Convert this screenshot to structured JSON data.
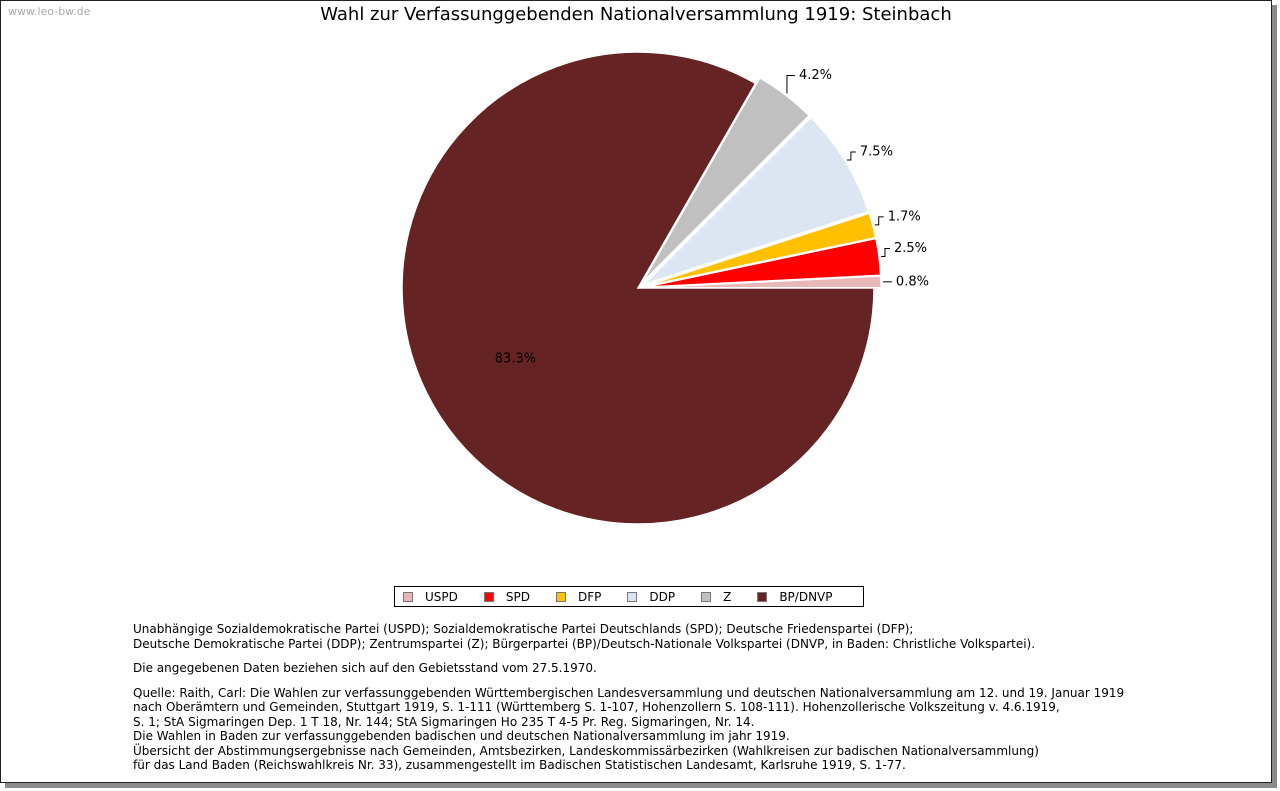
{
  "watermark": "www.leo-bw.de",
  "chart_data": {
    "type": "pie",
    "title": "Wahl zur Verfassunggebenden Nationalversammlung 1919: Steinbach",
    "slices": [
      {
        "name": "USPD",
        "value": 0.8,
        "label": "0.8%",
        "color": "#E8B8B8"
      },
      {
        "name": "SPD",
        "value": 2.5,
        "label": "2.5%",
        "color": "#FF0000"
      },
      {
        "name": "DFP",
        "value": 1.7,
        "label": "1.7%",
        "color": "#FFC000"
      },
      {
        "name": "DDP",
        "value": 7.5,
        "label": "7.5%",
        "color": "#DCE6F2"
      },
      {
        "name": "Z",
        "value": 4.2,
        "label": "4.2%",
        "color": "#C0C0C0"
      },
      {
        "name": "BP/DNVP",
        "value": 83.3,
        "label": "83.3%",
        "color": "#652324"
      }
    ],
    "legend_placement": "bottom"
  },
  "notes": {
    "parties": [
      "Unabhängige Sozialdemokratische Partei (USPD); Sozialdemokratische Partei Deutschlands (SPD); Deutsche Friedenspartei (DFP);",
      "Deutsche Demokratische Partei (DDP); Zentrumspartei (Z); Bürgerpartei (BP)/Deutsch-Nationale Volkspartei (DNVP, in Baden: Christliche Volkspartei)."
    ],
    "territory": [
      "Die angegebenen Daten beziehen sich auf den Gebietsstand vom 27.5.1970."
    ],
    "source": [
      "Quelle: Raith, Carl: Die Wahlen zur verfassunggebenden Württembergischen Landesversammlung und deutschen Nationalversammlung am 12. und 19. Januar 1919",
      "nach Oberämtern und Gemeinden, Stuttgart 1919, S. 1-111 (Württemberg S. 1-107, Hohenzollern S. 108-111). Hohenzollerische Volkszeitung v. 4.6.1919,",
      "S. 1; StA Sigmaringen Dep. 1 T 18, Nr. 144; StA Sigmaringen Ho 235 T 4-5 Pr. Reg. Sigmaringen, Nr. 14.",
      "Die Wahlen in Baden zur verfassunggebenden badischen und deutschen Nationalversammlung im jahr 1919.",
      "Übersicht der Abstimmungsergebnisse nach Gemeinden, Amtsbezirken, Landeskommissärbezirken (Wahlkreisen zur badischen Nationalversammlung)",
      "für das Land Baden (Reichswahlkreis Nr. 33), zusammengestellt im Badischen Statistischen Landesamt, Karlsruhe 1919, S. 1-77."
    ]
  }
}
